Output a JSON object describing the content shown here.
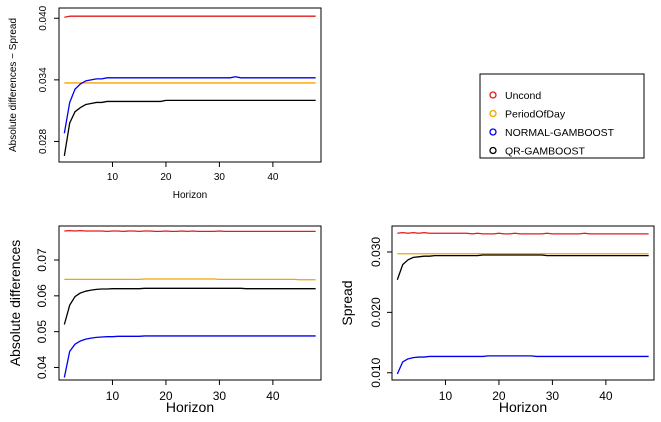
{
  "chart_data": [
    {
      "type": "line",
      "panel": "top-left",
      "xlabel": "Horizon",
      "ylabel": "Absolute differences − Spread",
      "xlim": [
        0,
        49
      ],
      "ylim": [
        0.026,
        0.041
      ],
      "xticks": [
        "10",
        "20",
        "30",
        "40"
      ],
      "yticks": [
        "0.028",
        "0.034",
        "0.040"
      ],
      "ytick_values": [
        0.028,
        0.034,
        0.04
      ],
      "x_start": 1,
      "x_end": 48,
      "series": [
        {
          "name": "Uncond",
          "color": "#e41a1c",
          "values": [
            0.0401,
            0.0402,
            0.0402,
            0.0402,
            0.0402,
            0.0402,
            0.0402,
            0.0402,
            0.0402,
            0.0402,
            0.0402,
            0.0402,
            0.0402,
            0.0402,
            0.0402,
            0.0402,
            0.0402,
            0.0402,
            0.0402,
            0.0402,
            0.0402,
            0.0402,
            0.0402,
            0.0402,
            0.0402,
            0.0402,
            0.0402,
            0.0402,
            0.0402,
            0.0402,
            0.0402,
            0.0402,
            0.0402,
            0.0402,
            0.0402,
            0.0402,
            0.0402,
            0.0402,
            0.0402,
            0.0402,
            0.0402,
            0.0402,
            0.0402,
            0.0402,
            0.0402,
            0.0402,
            0.0402,
            0.0402
          ]
        },
        {
          "name": "PeriodOfDay",
          "color": "#f5a300",
          "values": [
            0.0337,
            0.0337,
            0.0337,
            0.0337,
            0.0337,
            0.0337,
            0.0337,
            0.0337,
            0.0337,
            0.0337,
            0.0337,
            0.0337,
            0.0337,
            0.0337,
            0.0337,
            0.0337,
            0.0337,
            0.0337,
            0.0337,
            0.0337,
            0.0337,
            0.0337,
            0.0337,
            0.0337,
            0.0337,
            0.0337,
            0.0337,
            0.0337,
            0.0337,
            0.0337,
            0.0337,
            0.0337,
            0.0337,
            0.0337,
            0.0337,
            0.0337,
            0.0337,
            0.0337,
            0.0337,
            0.0337,
            0.0337,
            0.0337,
            0.0337,
            0.0337,
            0.0337,
            0.0337,
            0.0337,
            0.0337
          ]
        },
        {
          "name": "NORMAL-GAMBOOST",
          "color": "#0000ee",
          "values": [
            0.0288,
            0.0318,
            0.0331,
            0.0336,
            0.0339,
            0.034,
            0.0341,
            0.0341,
            0.0342,
            0.0342,
            0.0342,
            0.0342,
            0.0342,
            0.0342,
            0.0342,
            0.0342,
            0.0342,
            0.0342,
            0.0342,
            0.0342,
            0.0342,
            0.0342,
            0.0342,
            0.0342,
            0.0342,
            0.0342,
            0.0342,
            0.0342,
            0.0342,
            0.0342,
            0.0342,
            0.0342,
            0.0343,
            0.0342,
            0.0342,
            0.0342,
            0.0342,
            0.0342,
            0.0342,
            0.0342,
            0.0342,
            0.0342,
            0.0342,
            0.0342,
            0.0342,
            0.0342,
            0.0342,
            0.0342
          ]
        },
        {
          "name": "QR-GAMBOOST",
          "color": "#000000",
          "values": [
            0.0266,
            0.0298,
            0.0309,
            0.0313,
            0.0316,
            0.0317,
            0.0318,
            0.0318,
            0.0319,
            0.0319,
            0.0319,
            0.0319,
            0.0319,
            0.0319,
            0.0319,
            0.0319,
            0.0319,
            0.0319,
            0.0319,
            0.032,
            0.032,
            0.032,
            0.032,
            0.032,
            0.032,
            0.032,
            0.032,
            0.032,
            0.032,
            0.032,
            0.032,
            0.032,
            0.032,
            0.032,
            0.032,
            0.032,
            0.032,
            0.032,
            0.032,
            0.032,
            0.032,
            0.032,
            0.032,
            0.032,
            0.032,
            0.032,
            0.032,
            0.032
          ]
        }
      ]
    },
    {
      "type": "line",
      "panel": "bottom-left",
      "xlabel": "Horizon",
      "ylabel": "Absolute differences",
      "xlim": [
        0,
        49
      ],
      "ylim": [
        0.0365,
        0.0795
      ],
      "xticks": [
        "10",
        "20",
        "30",
        "40"
      ],
      "yticks": [
        "0.04",
        "0.05",
        "0.06",
        "0.07"
      ],
      "ytick_values": [
        0.04,
        0.05,
        0.06,
        0.07
      ],
      "x_start": 1,
      "x_end": 48,
      "series": [
        {
          "name": "Uncond",
          "color": "#e41a1c",
          "values": [
            0.0781,
            0.0782,
            0.0781,
            0.0782,
            0.0781,
            0.0781,
            0.0781,
            0.0781,
            0.078,
            0.0781,
            0.0781,
            0.078,
            0.0781,
            0.0781,
            0.078,
            0.0781,
            0.0781,
            0.078,
            0.078,
            0.0781,
            0.078,
            0.078,
            0.0781,
            0.078,
            0.0781,
            0.078,
            0.078,
            0.078,
            0.078,
            0.0781,
            0.078,
            0.078,
            0.078,
            0.078,
            0.078,
            0.078,
            0.078,
            0.078,
            0.078,
            0.078,
            0.078,
            0.078,
            0.078,
            0.078,
            0.078,
            0.078,
            0.078,
            0.078
          ]
        },
        {
          "name": "PeriodOfDay",
          "color": "#f5a300",
          "values": [
            0.0646,
            0.0646,
            0.0646,
            0.0646,
            0.0646,
            0.0646,
            0.0646,
            0.0646,
            0.0646,
            0.0646,
            0.0646,
            0.0646,
            0.0646,
            0.0646,
            0.0646,
            0.0647,
            0.0647,
            0.0647,
            0.0647,
            0.0647,
            0.0647,
            0.0647,
            0.0647,
            0.0647,
            0.0647,
            0.0647,
            0.0647,
            0.0647,
            0.0647,
            0.0646,
            0.0646,
            0.0646,
            0.0646,
            0.0646,
            0.0646,
            0.0646,
            0.0646,
            0.0646,
            0.0646,
            0.0646,
            0.0646,
            0.0646,
            0.0646,
            0.0646,
            0.0645,
            0.0645,
            0.0645,
            0.0645
          ]
        },
        {
          "name": "NORMAL-GAMBOOST",
          "color": "#0000ee",
          "values": [
            0.0372,
            0.0445,
            0.0465,
            0.0474,
            0.0479,
            0.0482,
            0.0484,
            0.0485,
            0.0486,
            0.0486,
            0.0487,
            0.0487,
            0.0487,
            0.0487,
            0.0487,
            0.0488,
            0.0488,
            0.0488,
            0.0488,
            0.0488,
            0.0488,
            0.0488,
            0.0488,
            0.0488,
            0.0488,
            0.0488,
            0.0488,
            0.0488,
            0.0488,
            0.0488,
            0.0488,
            0.0488,
            0.0488,
            0.0488,
            0.0488,
            0.0488,
            0.0488,
            0.0488,
            0.0488,
            0.0488,
            0.0488,
            0.0488,
            0.0488,
            0.0488,
            0.0488,
            0.0488,
            0.0488,
            0.0488
          ]
        },
        {
          "name": "QR-GAMBOOST",
          "color": "#000000",
          "values": [
            0.052,
            0.0574,
            0.0598,
            0.0608,
            0.0613,
            0.0616,
            0.0618,
            0.0619,
            0.0619,
            0.062,
            0.062,
            0.062,
            0.062,
            0.062,
            0.062,
            0.0621,
            0.0621,
            0.0621,
            0.0621,
            0.0621,
            0.0621,
            0.0621,
            0.0621,
            0.0621,
            0.0621,
            0.0621,
            0.0621,
            0.0621,
            0.0621,
            0.0621,
            0.0621,
            0.0621,
            0.0621,
            0.0621,
            0.062,
            0.062,
            0.062,
            0.062,
            0.062,
            0.062,
            0.062,
            0.062,
            0.062,
            0.062,
            0.062,
            0.062,
            0.062,
            0.062
          ]
        }
      ]
    },
    {
      "type": "line",
      "panel": "bottom-right",
      "xlabel": "Horizon",
      "ylabel": "Spread",
      "xlim": [
        0,
        49
      ],
      "ylim": [
        0.0088,
        0.0343
      ],
      "xticks": [
        "10",
        "20",
        "30",
        "40"
      ],
      "yticks": [
        "0.010",
        "0.020",
        "0.030"
      ],
      "ytick_values": [
        0.01,
        0.02,
        0.03
      ],
      "x_start": 1,
      "x_end": 48,
      "series": [
        {
          "name": "Uncond",
          "color": "#e41a1c",
          "values": [
            0.0331,
            0.0332,
            0.0331,
            0.0332,
            0.0331,
            0.0332,
            0.0331,
            0.0331,
            0.0331,
            0.0331,
            0.0331,
            0.0331,
            0.0331,
            0.0331,
            0.033,
            0.0331,
            0.033,
            0.033,
            0.033,
            0.0331,
            0.033,
            0.033,
            0.0331,
            0.033,
            0.033,
            0.033,
            0.033,
            0.033,
            0.0331,
            0.033,
            0.033,
            0.033,
            0.033,
            0.033,
            0.033,
            0.0331,
            0.033,
            0.033,
            0.033,
            0.033,
            0.033,
            0.033,
            0.033,
            0.033,
            0.033,
            0.033,
            0.033,
            0.033
          ]
        },
        {
          "name": "PeriodOfDay",
          "color": "#f5a300",
          "values": [
            0.0297,
            0.0297,
            0.0297,
            0.0297,
            0.0297,
            0.0297,
            0.0297,
            0.0297,
            0.0297,
            0.0297,
            0.0297,
            0.0297,
            0.0297,
            0.0297,
            0.0297,
            0.0297,
            0.0297,
            0.0297,
            0.0297,
            0.0297,
            0.0297,
            0.0297,
            0.0297,
            0.0297,
            0.0297,
            0.0297,
            0.0297,
            0.0297,
            0.0297,
            0.0297,
            0.0297,
            0.0297,
            0.0297,
            0.0297,
            0.0297,
            0.0297,
            0.0297,
            0.0297,
            0.0297,
            0.0297,
            0.0297,
            0.0297,
            0.0297,
            0.0297,
            0.0297,
            0.0297,
            0.0297,
            0.0297
          ]
        },
        {
          "name": "NORMAL-GAMBOOST",
          "color": "#0000ee",
          "values": [
            0.0098,
            0.0118,
            0.0123,
            0.0125,
            0.0126,
            0.0126,
            0.0127,
            0.0127,
            0.0127,
            0.0127,
            0.0127,
            0.0127,
            0.0127,
            0.0127,
            0.0127,
            0.0127,
            0.0127,
            0.0128,
            0.0128,
            0.0128,
            0.0128,
            0.0128,
            0.0128,
            0.0128,
            0.0128,
            0.0128,
            0.0127,
            0.0127,
            0.0127,
            0.0127,
            0.0127,
            0.0127,
            0.0127,
            0.0127,
            0.0127,
            0.0127,
            0.0127,
            0.0127,
            0.0127,
            0.0127,
            0.0127,
            0.0127,
            0.0127,
            0.0127,
            0.0127,
            0.0127,
            0.0127,
            0.0127
          ]
        },
        {
          "name": "QR-GAMBOOST",
          "color": "#000000",
          "values": [
            0.0254,
            0.0279,
            0.0287,
            0.0291,
            0.0292,
            0.0293,
            0.0293,
            0.0294,
            0.0294,
            0.0294,
            0.0294,
            0.0294,
            0.0294,
            0.0294,
            0.0294,
            0.0294,
            0.0295,
            0.0295,
            0.0295,
            0.0295,
            0.0295,
            0.0295,
            0.0295,
            0.0295,
            0.0295,
            0.0295,
            0.0295,
            0.0295,
            0.0294,
            0.0294,
            0.0294,
            0.0294,
            0.0294,
            0.0294,
            0.0294,
            0.0294,
            0.0294,
            0.0294,
            0.0294,
            0.0294,
            0.0294,
            0.0294,
            0.0294,
            0.0294,
            0.0294,
            0.0294,
            0.0294,
            0.0294
          ]
        }
      ]
    }
  ],
  "legend": {
    "placement": "right of top panel",
    "marker": "open-circle",
    "entries": [
      {
        "label": "Uncond",
        "color": "#e41a1c"
      },
      {
        "label": "PeriodOfDay",
        "color": "#f5a300"
      },
      {
        "label": "NORMAL-GAMBOOST",
        "color": "#0000ee"
      },
      {
        "label": "QR-GAMBOOST",
        "color": "#000000"
      }
    ]
  }
}
